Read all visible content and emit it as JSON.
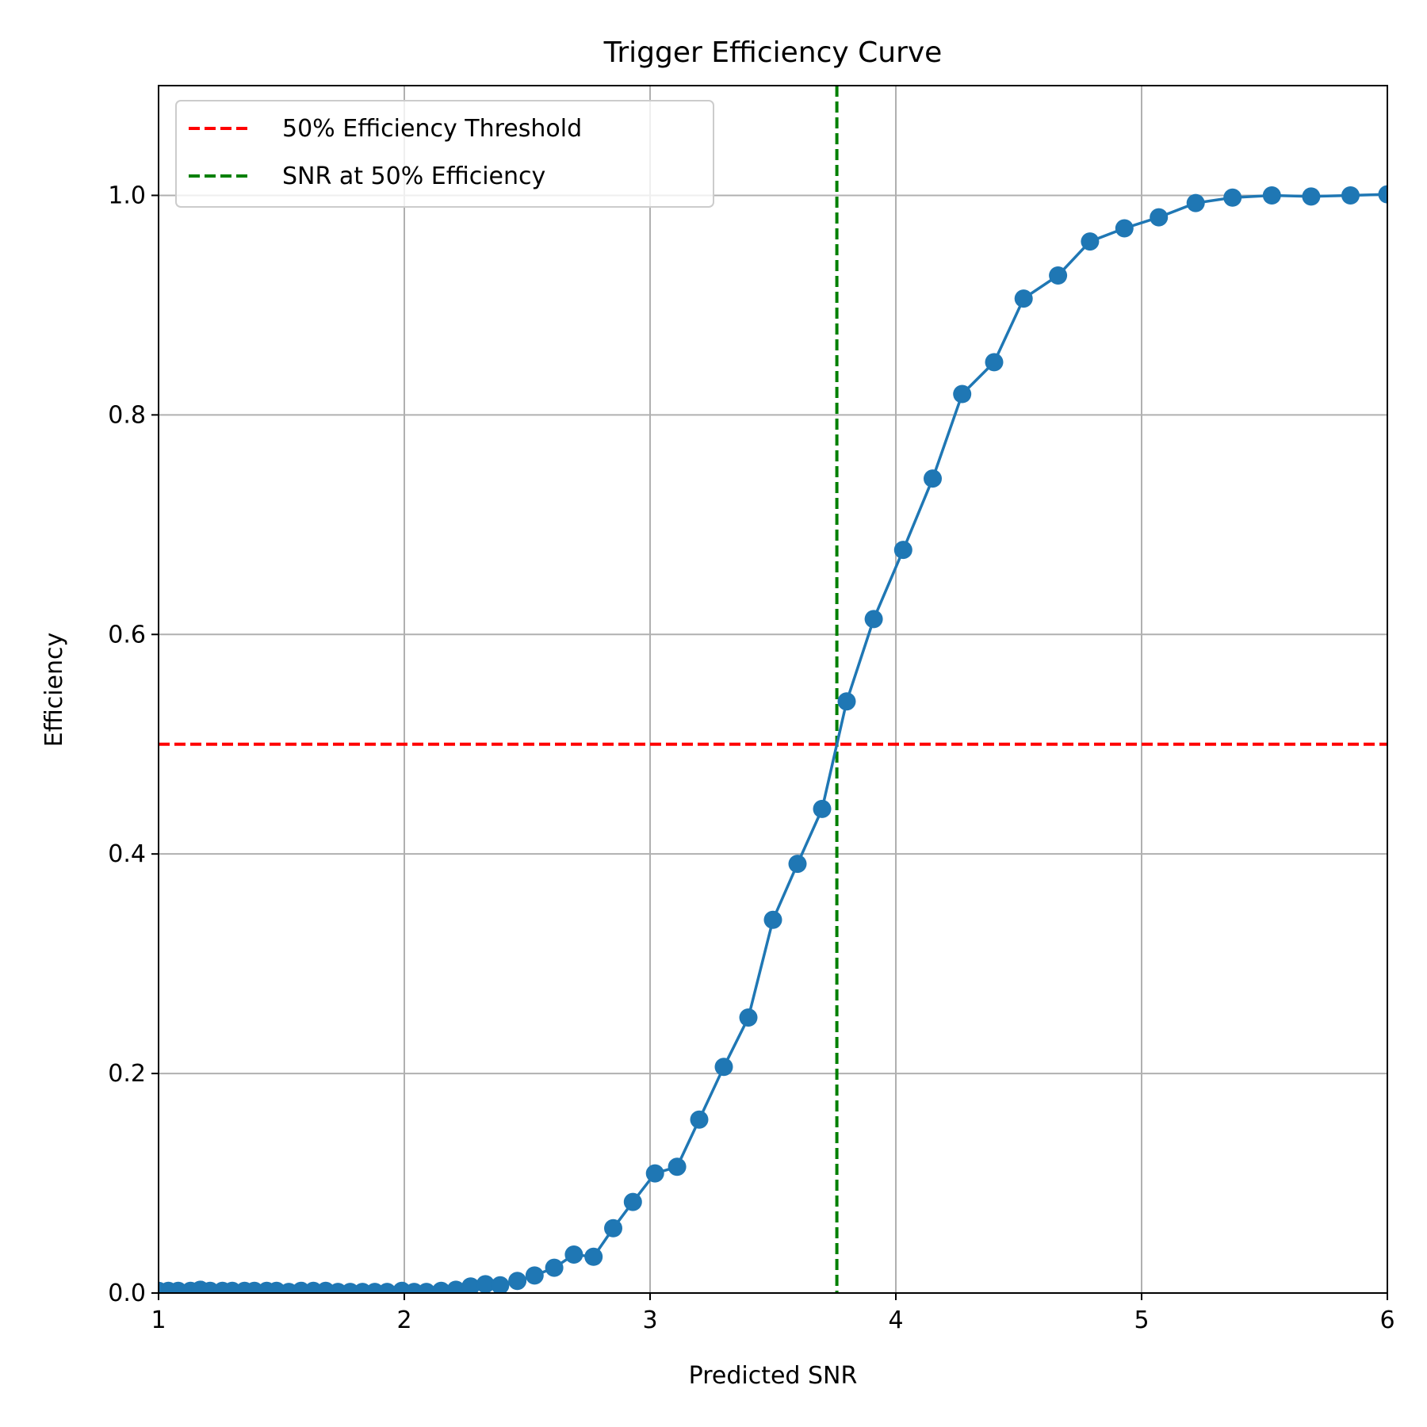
{
  "chart_data": {
    "type": "line",
    "title": "Trigger Efficiency Curve",
    "xlabel": "Predicted SNR",
    "ylabel": "Efficiency",
    "xlim": [
      1,
      6
    ],
    "ylim": [
      0,
      1.1
    ],
    "x_ticks": [
      1,
      2,
      3,
      4,
      5,
      6
    ],
    "x_tick_labels": [
      "1",
      "2",
      "3",
      "4",
      "5",
      "6"
    ],
    "y_ticks": [
      0,
      0.2,
      0.4,
      0.6,
      0.8,
      1.0
    ],
    "y_tick_labels": [
      "0.0",
      "0.2",
      "0.4",
      "0.6",
      "0.8",
      "1.0"
    ],
    "grid": true,
    "legend_position": "top-left",
    "series": [
      {
        "color": "#1f77b4",
        "marker": "circle",
        "x": [
          1.0,
          1.04,
          1.08,
          1.13,
          1.17,
          1.21,
          1.26,
          1.3,
          1.35,
          1.39,
          1.44,
          1.48,
          1.53,
          1.58,
          1.63,
          1.68,
          1.73,
          1.78,
          1.83,
          1.88,
          1.93,
          1.99,
          2.04,
          2.09,
          2.15,
          2.21,
          2.27,
          2.33,
          2.39,
          2.46,
          2.53,
          2.61,
          2.69,
          2.77,
          2.85,
          2.93,
          3.02,
          3.11,
          3.2,
          3.3,
          3.4,
          3.5,
          3.6,
          3.7,
          3.8,
          3.91,
          4.03,
          4.15,
          4.27,
          4.4,
          4.52,
          4.66,
          4.79,
          4.93,
          5.07,
          5.22,
          5.37,
          5.53,
          5.69,
          5.85,
          6.0
        ],
        "y": [
          0.002,
          0.002,
          0.002,
          0.002,
          0.003,
          0.002,
          0.002,
          0.002,
          0.002,
          0.002,
          0.002,
          0.002,
          0.001,
          0.002,
          0.002,
          0.002,
          0.001,
          0.001,
          0.001,
          0.001,
          0.001,
          0.002,
          0.001,
          0.001,
          0.002,
          0.003,
          0.006,
          0.008,
          0.007,
          0.011,
          0.016,
          0.023,
          0.035,
          0.033,
          0.059,
          0.083,
          0.109,
          0.115,
          0.158,
          0.206,
          0.251,
          0.34,
          0.391,
          0.441,
          0.539,
          0.614,
          0.677,
          0.742,
          0.819,
          0.848,
          0.906,
          0.927,
          0.958,
          0.97,
          0.98,
          0.993,
          0.998,
          1.0,
          0.999,
          1.0,
          1.001
        ]
      }
    ],
    "reference_lines": [
      {
        "orientation": "horizontal",
        "value": 0.5,
        "color": "#ff0000",
        "style": "dashed",
        "label": "50% Efficiency Threshold"
      },
      {
        "orientation": "vertical",
        "value": 3.76,
        "color": "#008000",
        "style": "dashed",
        "label": "SNR at 50% Efficiency"
      }
    ]
  }
}
